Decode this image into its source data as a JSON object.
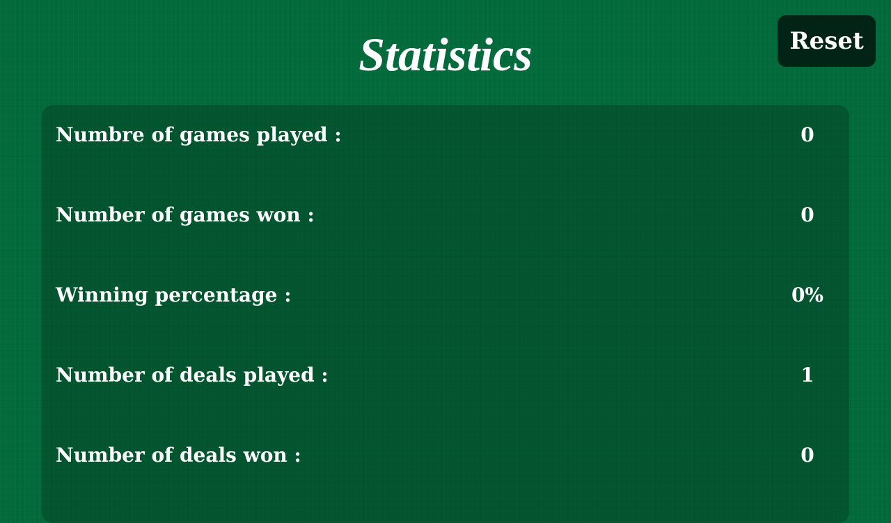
{
  "header": {
    "title": "Statistics",
    "reset_label": "Reset"
  },
  "stats": [
    {
      "label": "Numbre of games played :",
      "value": "0"
    },
    {
      "label": "Number of games won :",
      "value": "0"
    },
    {
      "label": "Winning percentage :",
      "value": "0%"
    },
    {
      "label": "Number of deals played :",
      "value": "1"
    },
    {
      "label": "Number of deals won :",
      "value": "0"
    }
  ]
}
